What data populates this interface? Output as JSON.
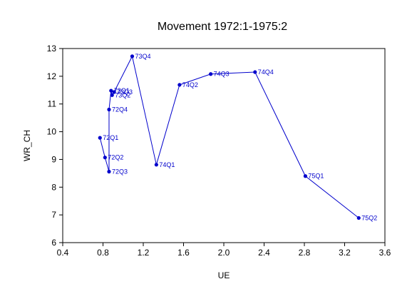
{
  "chart_data": {
    "type": "line",
    "title": "Movement 1972:1-1975:2",
    "xlabel": "UE",
    "ylabel": "WR_CH",
    "xlim": [
      0.4,
      3.6
    ],
    "ylim": [
      6,
      13
    ],
    "x_ticks": [
      "0.4",
      "0.8",
      "1.2",
      "1.6",
      "2.0",
      "2.4",
      "2.8",
      "3.2",
      "3.6"
    ],
    "y_ticks": [
      "6",
      "7",
      "8",
      "9",
      "10",
      "11",
      "12",
      "13"
    ],
    "grid": false,
    "series_color": "#0000cc",
    "points": [
      {
        "label": "72Q1",
        "x": 0.77,
        "y": 9.78
      },
      {
        "label": "72Q2",
        "x": 0.82,
        "y": 9.07
      },
      {
        "label": "72Q3",
        "x": 0.86,
        "y": 8.56
      },
      {
        "label": "72Q4",
        "x": 0.86,
        "y": 10.8
      },
      {
        "label": "73Q1",
        "x": 0.88,
        "y": 11.48
      },
      {
        "label": "73Q2",
        "x": 0.89,
        "y": 11.32
      },
      {
        "label": "73Q3",
        "x": 0.91,
        "y": 11.43
      },
      {
        "label": "73Q4",
        "x": 1.09,
        "y": 12.72
      },
      {
        "label": "74Q1",
        "x": 1.33,
        "y": 8.81
      },
      {
        "label": "74Q2",
        "x": 1.56,
        "y": 11.69
      },
      {
        "label": "74Q3",
        "x": 1.87,
        "y": 12.08
      },
      {
        "label": "74Q4",
        "x": 2.31,
        "y": 12.15
      },
      {
        "label": "75Q1",
        "x": 2.81,
        "y": 8.4
      },
      {
        "label": "75Q2",
        "x": 3.34,
        "y": 6.89
      }
    ]
  }
}
